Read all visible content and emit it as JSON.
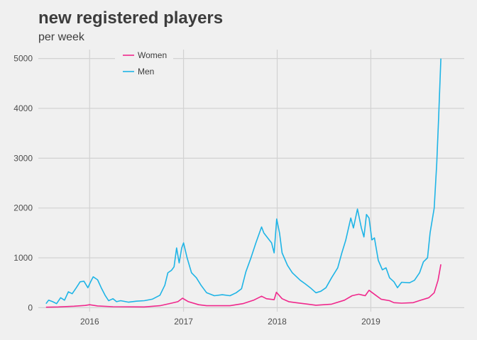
{
  "title": "new registered players",
  "subtitle": "per week",
  "colors": {
    "women": "#f0288c",
    "men": "#1eb4e6",
    "grid": "#d2d2d2",
    "background": "#f0f0f0"
  },
  "chart_data": {
    "type": "line",
    "title": "new registered players",
    "subtitle": "per week",
    "xlabel": "",
    "ylabel": "",
    "x_ticks": [
      "2016",
      "2017",
      "2018",
      "2019"
    ],
    "y_ticks": [
      0,
      1000,
      2000,
      3000,
      4000,
      5000
    ],
    "xlim": [
      "2015-06-15",
      "2019-12-31"
    ],
    "ylim": [
      -80,
      5180
    ],
    "grid": true,
    "legend": "top-left",
    "series": [
      {
        "name": "Women",
        "color": "#f0288c",
        "points": [
          [
            "2015-07-15",
            10
          ],
          [
            "2015-09-01",
            15
          ],
          [
            "2015-11-01",
            30
          ],
          [
            "2015-12-15",
            45
          ],
          [
            "2016-01-01",
            60
          ],
          [
            "2016-02-01",
            35
          ],
          [
            "2016-04-01",
            20
          ],
          [
            "2016-08-01",
            15
          ],
          [
            "2016-10-01",
            40
          ],
          [
            "2016-11-15",
            90
          ],
          [
            "2016-12-10",
            120
          ],
          [
            "2016-12-28",
            190
          ],
          [
            "2017-01-20",
            120
          ],
          [
            "2017-03-01",
            60
          ],
          [
            "2017-04-01",
            40
          ],
          [
            "2017-07-01",
            40
          ],
          [
            "2017-08-20",
            80
          ],
          [
            "2017-10-01",
            150
          ],
          [
            "2017-11-01",
            230
          ],
          [
            "2017-11-20",
            180
          ],
          [
            "2017-12-20",
            160
          ],
          [
            "2017-12-29",
            310
          ],
          [
            "2018-01-20",
            180
          ],
          [
            "2018-02-15",
            120
          ],
          [
            "2018-03-15",
            100
          ],
          [
            "2018-05-01",
            70
          ],
          [
            "2018-06-01",
            50
          ],
          [
            "2018-08-01",
            70
          ],
          [
            "2018-09-20",
            150
          ],
          [
            "2018-10-20",
            240
          ],
          [
            "2018-11-15",
            270
          ],
          [
            "2018-12-10",
            240
          ],
          [
            "2018-12-25",
            350
          ],
          [
            "2019-01-20",
            250
          ],
          [
            "2019-02-10",
            170
          ],
          [
            "2019-03-15",
            140
          ],
          [
            "2019-04-01",
            100
          ],
          [
            "2019-05-01",
            90
          ],
          [
            "2019-06-15",
            100
          ],
          [
            "2019-07-15",
            150
          ],
          [
            "2019-08-15",
            200
          ],
          [
            "2019-09-05",
            300
          ],
          [
            "2019-09-20",
            550
          ],
          [
            "2019-10-01",
            870
          ]
        ]
      },
      {
        "name": "Men",
        "color": "#1eb4e6",
        "points": [
          [
            "2015-07-15",
            80
          ],
          [
            "2015-07-25",
            150
          ],
          [
            "2015-08-10",
            120
          ],
          [
            "2015-08-25",
            80
          ],
          [
            "2015-09-10",
            200
          ],
          [
            "2015-09-25",
            150
          ],
          [
            "2015-10-10",
            320
          ],
          [
            "2015-10-25",
            280
          ],
          [
            "2015-11-10",
            400
          ],
          [
            "2015-11-25",
            520
          ],
          [
            "2015-12-10",
            530
          ],
          [
            "2015-12-25",
            400
          ],
          [
            "2016-01-05",
            520
          ],
          [
            "2016-01-15",
            620
          ],
          [
            "2016-02-01",
            560
          ],
          [
            "2016-02-15",
            400
          ],
          [
            "2016-03-01",
            250
          ],
          [
            "2016-03-15",
            140
          ],
          [
            "2016-04-01",
            180
          ],
          [
            "2016-04-15",
            120
          ],
          [
            "2016-05-01",
            140
          ],
          [
            "2016-06-01",
            110
          ],
          [
            "2016-07-01",
            130
          ],
          [
            "2016-08-01",
            140
          ],
          [
            "2016-09-01",
            170
          ],
          [
            "2016-10-01",
            250
          ],
          [
            "2016-10-20",
            450
          ],
          [
            "2016-11-01",
            700
          ],
          [
            "2016-11-15",
            750
          ],
          [
            "2016-11-25",
            820
          ],
          [
            "2016-12-05",
            1200
          ],
          [
            "2016-12-15",
            900
          ],
          [
            "2016-12-25",
            1200
          ],
          [
            "2017-01-01",
            1300
          ],
          [
            "2017-01-15",
            1000
          ],
          [
            "2017-02-01",
            700
          ],
          [
            "2017-02-20",
            600
          ],
          [
            "2017-03-10",
            450
          ],
          [
            "2017-04-01",
            300
          ],
          [
            "2017-05-01",
            240
          ],
          [
            "2017-06-01",
            260
          ],
          [
            "2017-07-01",
            240
          ],
          [
            "2017-07-25",
            300
          ],
          [
            "2017-08-15",
            380
          ],
          [
            "2017-09-01",
            720
          ],
          [
            "2017-09-20",
            990
          ],
          [
            "2017-10-10",
            1300
          ],
          [
            "2017-11-01",
            1620
          ],
          [
            "2017-11-10",
            1500
          ],
          [
            "2017-11-25",
            1400
          ],
          [
            "2017-12-10",
            1300
          ],
          [
            "2017-12-20",
            1100
          ],
          [
            "2017-12-30",
            1780
          ],
          [
            "2018-01-10",
            1500
          ],
          [
            "2018-01-20",
            1100
          ],
          [
            "2018-02-10",
            850
          ],
          [
            "2018-03-01",
            700
          ],
          [
            "2018-04-01",
            550
          ],
          [
            "2018-04-20",
            480
          ],
          [
            "2018-05-10",
            400
          ],
          [
            "2018-06-01",
            300
          ],
          [
            "2018-06-20",
            330
          ],
          [
            "2018-07-10",
            400
          ],
          [
            "2018-08-01",
            600
          ],
          [
            "2018-08-25",
            800
          ],
          [
            "2018-09-10",
            1100
          ],
          [
            "2018-09-25",
            1350
          ],
          [
            "2018-10-15",
            1800
          ],
          [
            "2018-10-25",
            1600
          ],
          [
            "2018-11-10",
            1980
          ],
          [
            "2018-11-25",
            1600
          ],
          [
            "2018-12-05",
            1420
          ],
          [
            "2018-12-15",
            1870
          ],
          [
            "2018-12-25",
            1800
          ],
          [
            "2019-01-05",
            1360
          ],
          [
            "2019-01-15",
            1400
          ],
          [
            "2019-01-30",
            950
          ],
          [
            "2019-02-15",
            760
          ],
          [
            "2019-03-01",
            800
          ],
          [
            "2019-03-15",
            600
          ],
          [
            "2019-04-01",
            520
          ],
          [
            "2019-04-15",
            400
          ],
          [
            "2019-05-01",
            510
          ],
          [
            "2019-06-01",
            500
          ],
          [
            "2019-06-20",
            550
          ],
          [
            "2019-07-10",
            700
          ],
          [
            "2019-07-25",
            920
          ],
          [
            "2019-08-10",
            1000
          ],
          [
            "2019-08-20",
            1500
          ],
          [
            "2019-09-05",
            2000
          ],
          [
            "2019-09-15",
            2900
          ],
          [
            "2019-09-22",
            3800
          ],
          [
            "2019-10-01",
            5000
          ]
        ]
      }
    ]
  }
}
